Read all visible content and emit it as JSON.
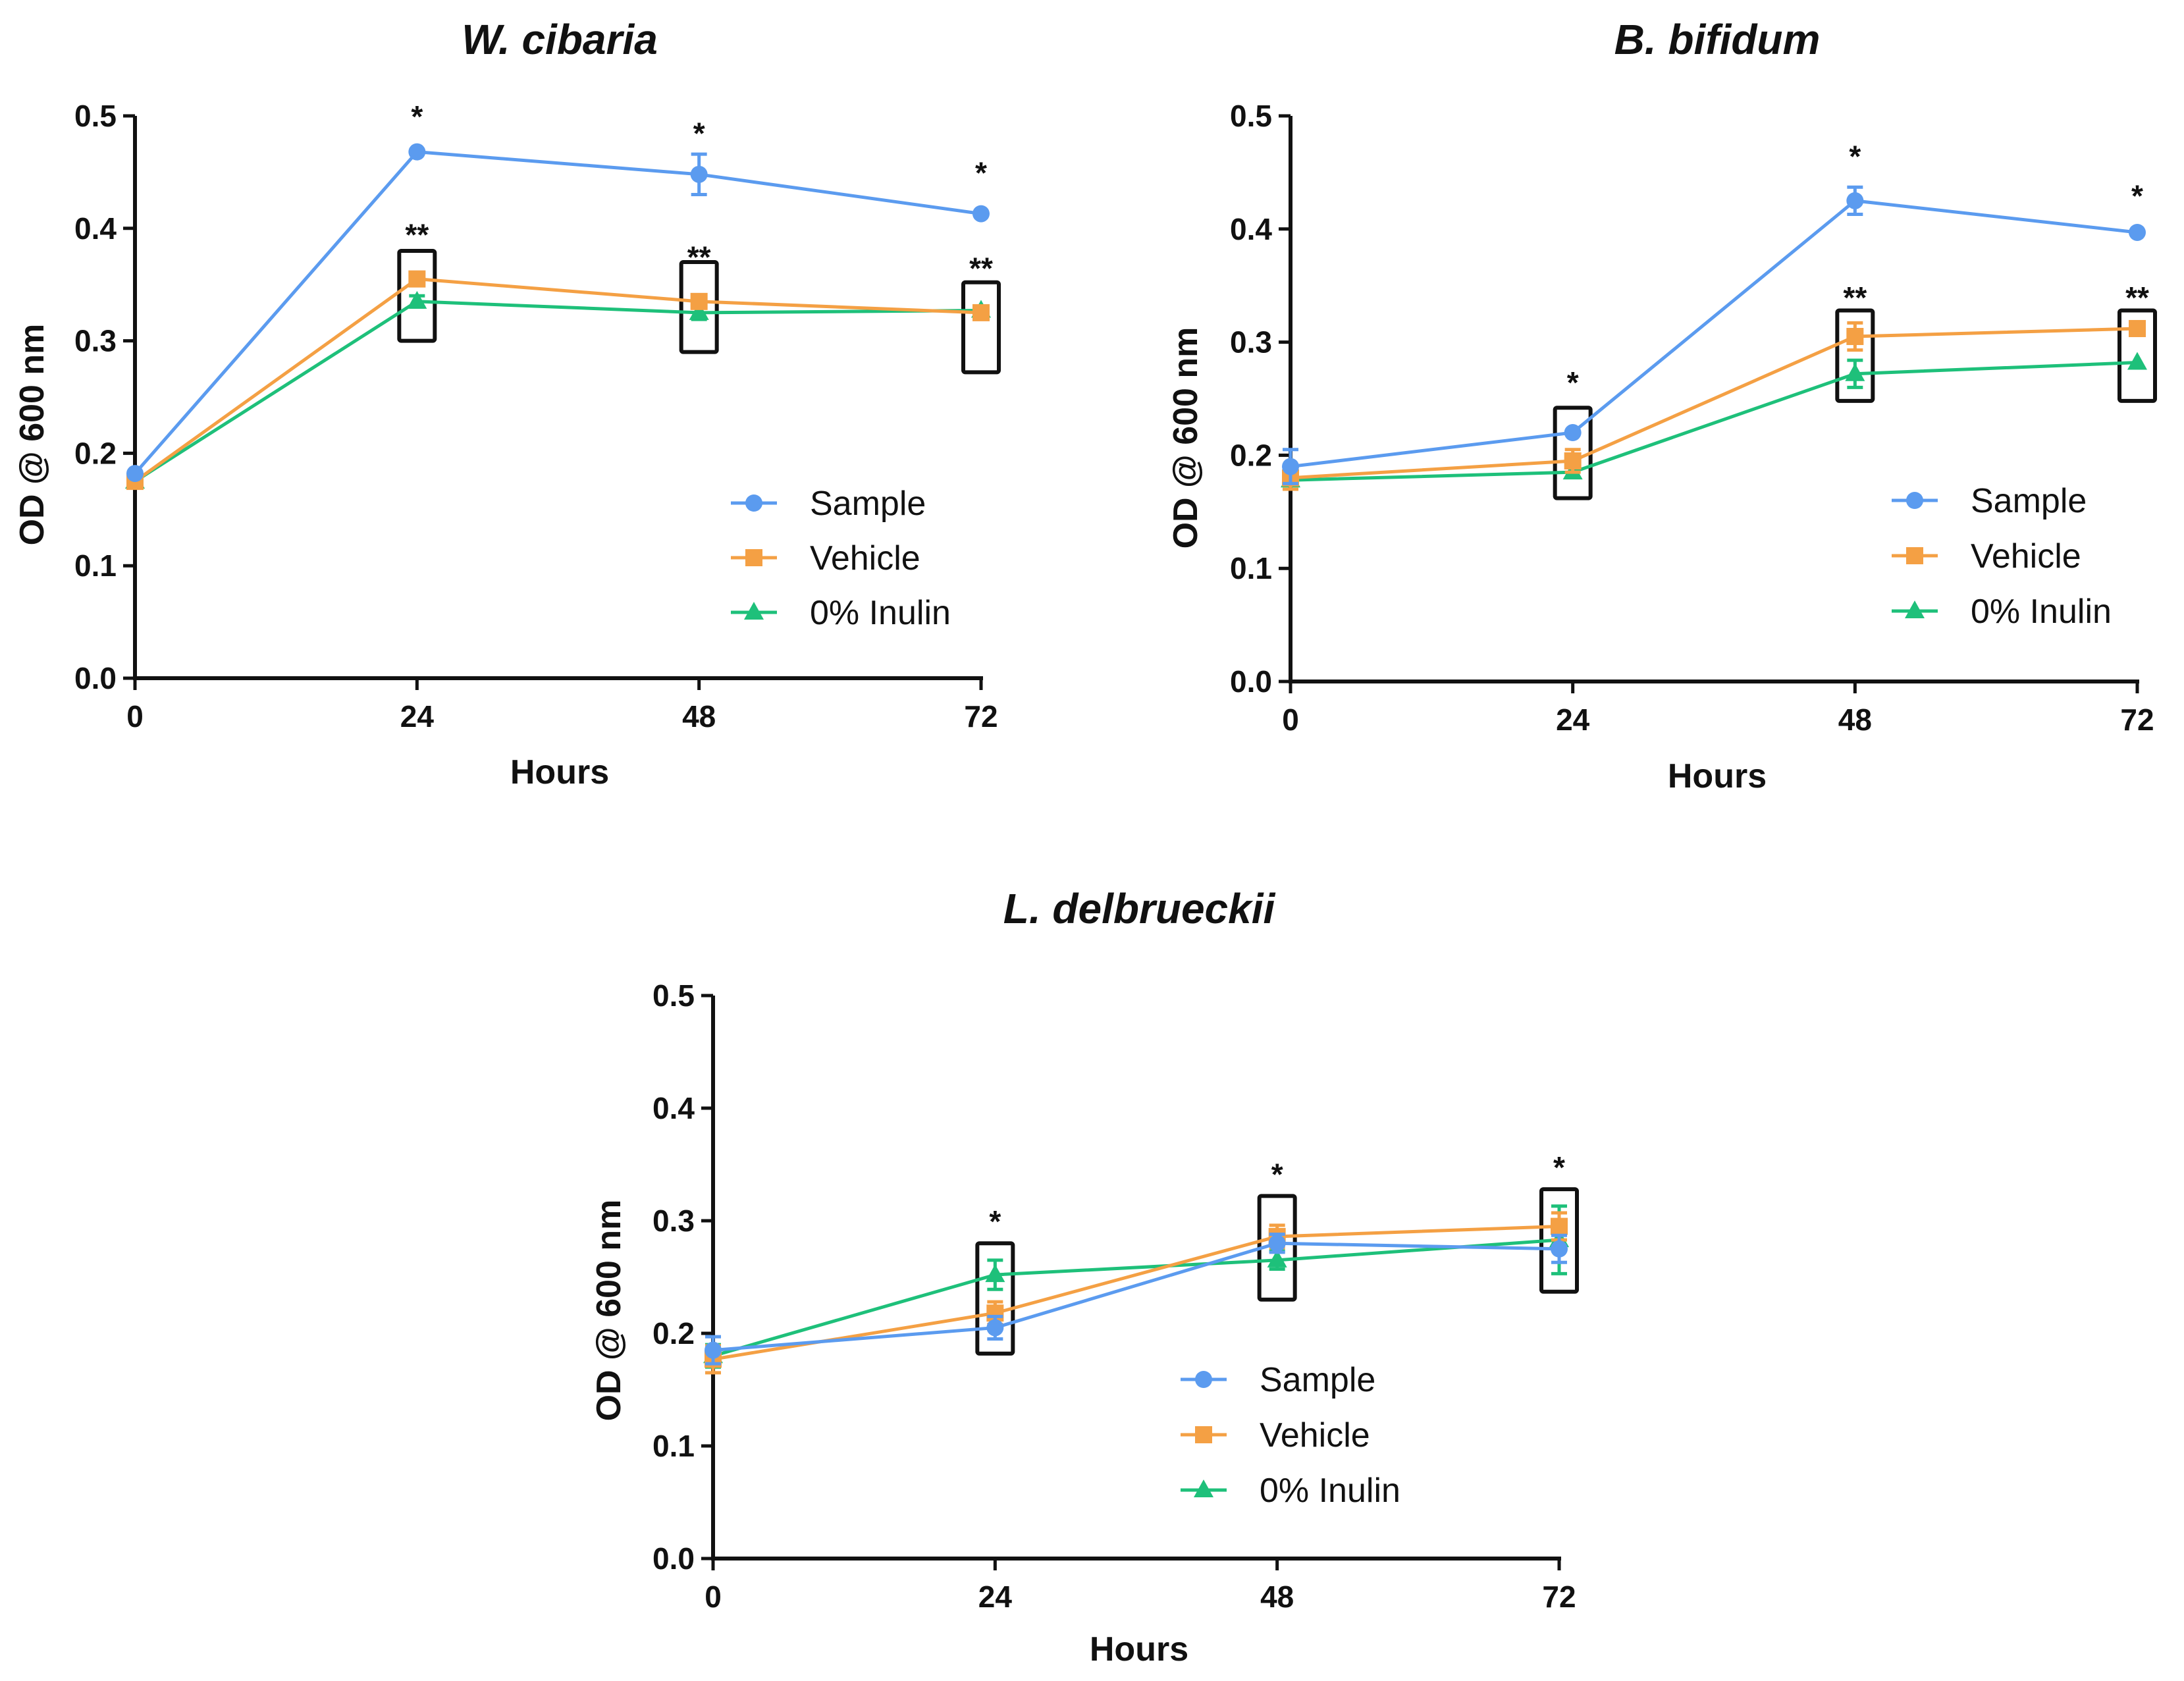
{
  "colors": {
    "Sample": "#5B9BEF",
    "Vehicle": "#F4A044",
    "0% Inulin": "#1EC07A"
  },
  "chart_data": [
    {
      "type": "line",
      "title": "W. cibaria",
      "xlabel": "Hours",
      "ylabel": "OD @ 600 nm",
      "x": [
        0,
        24,
        48,
        72
      ],
      "xticks": [
        "0",
        "24",
        "48",
        "72"
      ],
      "ylim": [
        0,
        0.5
      ],
      "yticks": [
        "0.0",
        "0.1",
        "0.2",
        "0.3",
        "0.4",
        "0.5"
      ],
      "legend": "bottom-right",
      "series": [
        {
          "name": "Sample",
          "marker": "circle",
          "values": [
            0.182,
            0.468,
            0.448,
            0.413
          ],
          "errors": [
            0.004,
            0.003,
            0.018,
            0.003
          ]
        },
        {
          "name": "Vehicle",
          "marker": "square",
          "values": [
            0.175,
            0.355,
            0.335,
            0.325
          ],
          "errors": [
            0.004,
            0.004,
            0.006,
            0.004
          ]
        },
        {
          "name": "0% Inulin",
          "marker": "triangle",
          "values": [
            0.175,
            0.335,
            0.325,
            0.327
          ],
          "errors": [
            0.004,
            0.005,
            0.006,
            0.004
          ]
        }
      ],
      "annotations": [
        {
          "x": 24,
          "label": "*",
          "y": 0.49
        },
        {
          "x": 48,
          "label": "*",
          "y": 0.475
        },
        {
          "x": 72,
          "label": "*",
          "y": 0.44
        },
        {
          "x": 24,
          "label": "**",
          "y": 0.385
        },
        {
          "x": 48,
          "label": "**",
          "y": 0.365
        },
        {
          "x": 72,
          "label": "**",
          "y": 0.355
        }
      ],
      "boxes": [
        {
          "x": 24,
          "y0": 0.3,
          "y1": 0.38
        },
        {
          "x": 48,
          "y0": 0.29,
          "y1": 0.37
        },
        {
          "x": 72,
          "y0": 0.272,
          "y1": 0.352
        }
      ]
    },
    {
      "type": "line",
      "title": "B. bifidum",
      "xlabel": "Hours",
      "ylabel": "OD @ 600 nm",
      "x": [
        0,
        24,
        48,
        72
      ],
      "xticks": [
        "0",
        "24",
        "48",
        "72"
      ],
      "ylim": [
        0,
        0.5
      ],
      "yticks": [
        "0.0",
        "0.1",
        "0.2",
        "0.3",
        "0.4",
        "0.5"
      ],
      "legend": "bottom-right",
      "series": [
        {
          "name": "Sample",
          "marker": "circle",
          "values": [
            0.19,
            0.22,
            0.425,
            0.397
          ],
          "errors": [
            0.015,
            0.004,
            0.012,
            0.003
          ]
        },
        {
          "name": "Vehicle",
          "marker": "square",
          "values": [
            0.18,
            0.195,
            0.305,
            0.312
          ],
          "errors": [
            0.01,
            0.01,
            0.012,
            0.004
          ]
        },
        {
          "name": "0% Inulin",
          "marker": "triangle",
          "values": [
            0.178,
            0.185,
            0.272,
            0.282
          ],
          "errors": [
            0.008,
            0.004,
            0.012,
            0.004
          ]
        }
      ],
      "annotations": [
        {
          "x": 24,
          "label": "*",
          "y": 0.255
        },
        {
          "x": 48,
          "label": "*",
          "y": 0.455
        },
        {
          "x": 72,
          "label": "*",
          "y": 0.42
        },
        {
          "x": 48,
          "label": "**",
          "y": 0.33
        },
        {
          "x": 72,
          "label": "**",
          "y": 0.33
        }
      ],
      "boxes": [
        {
          "x": 24,
          "y0": 0.162,
          "y1": 0.242
        },
        {
          "x": 48,
          "y0": 0.248,
          "y1": 0.328
        },
        {
          "x": 72,
          "y0": 0.248,
          "y1": 0.328
        }
      ]
    },
    {
      "type": "line",
      "title": "L. delbrueckii",
      "xlabel": "Hours",
      "ylabel": "OD @ 600 nm",
      "x": [
        0,
        24,
        48,
        72
      ],
      "xticks": [
        "0",
        "24",
        "48",
        "72"
      ],
      "ylim": [
        0,
        0.5
      ],
      "yticks": [
        "0.0",
        "0.1",
        "0.2",
        "0.3",
        "0.4",
        "0.5"
      ],
      "legend": "bottom-center",
      "series": [
        {
          "name": "Sample",
          "marker": "circle",
          "values": [
            0.185,
            0.205,
            0.28,
            0.275
          ],
          "errors": [
            0.012,
            0.01,
            0.008,
            0.012
          ]
        },
        {
          "name": "Vehicle",
          "marker": "square",
          "values": [
            0.177,
            0.218,
            0.286,
            0.295
          ],
          "errors": [
            0.012,
            0.01,
            0.01,
            0.012
          ]
        },
        {
          "name": "0% Inulin",
          "marker": "triangle",
          "values": [
            0.18,
            0.252,
            0.265,
            0.283
          ],
          "errors": [
            0.01,
            0.013,
            0.008,
            0.03
          ]
        }
      ],
      "annotations": [
        {
          "x": 24,
          "label": "*",
          "y": 0.29
        },
        {
          "x": 48,
          "label": "*",
          "y": 0.332
        },
        {
          "x": 72,
          "label": "*",
          "y": 0.338
        }
      ],
      "boxes": [
        {
          "x": 24,
          "y0": 0.182,
          "y1": 0.28
        },
        {
          "x": 48,
          "y0": 0.23,
          "y1": 0.322
        },
        {
          "x": 72,
          "y0": 0.237,
          "y1": 0.328
        }
      ]
    }
  ]
}
